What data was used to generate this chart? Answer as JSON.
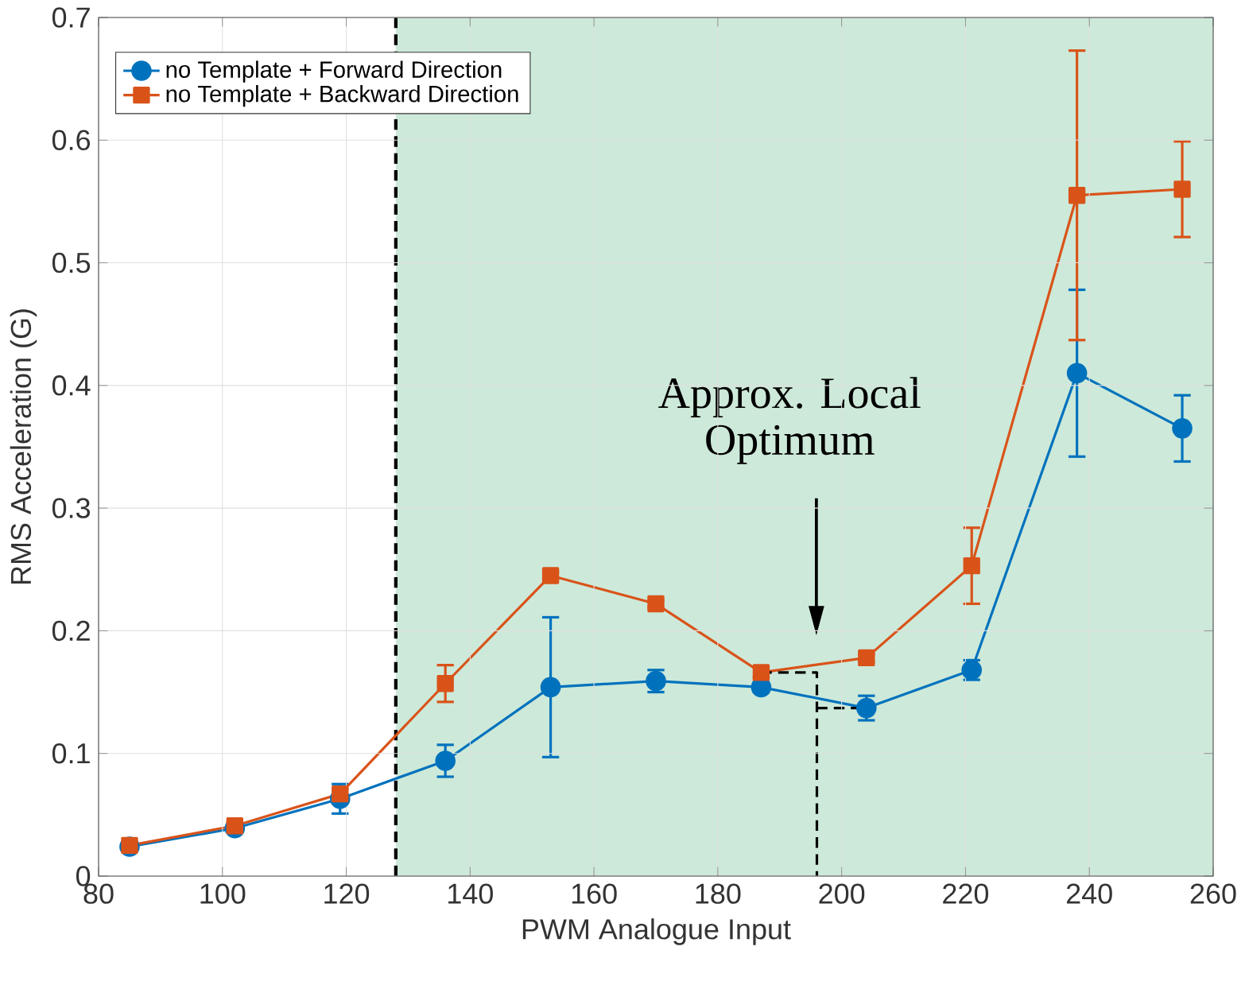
{
  "chart_data": {
    "type": "line",
    "xlabel": "PWM Analogue Input",
    "ylabel": "RMS Acceleration (G)",
    "x": [
      85,
      102,
      119,
      136,
      153,
      170,
      187,
      204,
      221,
      238,
      255
    ],
    "series": [
      {
        "name": "no Template + Forward Direction",
        "color": "#0072bd",
        "marker": "circle",
        "values": [
          0.024,
          0.039,
          0.063,
          0.094,
          0.154,
          0.159,
          0.154,
          0.137,
          0.168,
          0.41,
          0.365
        ],
        "errors": [
          0.003,
          0.003,
          0.012,
          0.013,
          0.057,
          0.009,
          0.004,
          0.01,
          0.008,
          0.068,
          0.027
        ]
      },
      {
        "name": "no Template + Backward Direction",
        "color": "#d95319",
        "marker": "square",
        "values": [
          0.025,
          0.041,
          0.067,
          0.157,
          0.245,
          0.222,
          0.166,
          0.178,
          0.253,
          0.555,
          0.56
        ],
        "errors": [
          0.003,
          0.003,
          0.004,
          0.015,
          0.003,
          0.003,
          0.004,
          0.003,
          0.031,
          0.118,
          0.039
        ]
      },
      {
        "color": "#000000",
        "line_style": "dashed",
        "marker": "none",
        "x": [
          187,
          196,
          196
        ],
        "values": [
          0.166,
          0.166,
          0
        ]
      },
      {
        "color": "#000000",
        "line_style": "dashed",
        "marker": "none",
        "x": [
          196,
          203
        ],
        "values": [
          0.137,
          0.137
        ]
      }
    ],
    "bands": [
      {
        "axis": "x",
        "from": 128,
        "to": 260,
        "color": "#cde9d9"
      }
    ],
    "ref_lines": [
      {
        "axis": "x",
        "value": 128,
        "color": "#000000",
        "line_style": "dashed"
      }
    ],
    "annotations": [
      "Approx. Local Optimum"
    ],
    "xlim": [
      80,
      260
    ],
    "ylim": [
      0,
      0.7
    ],
    "xticks": [
      80,
      100,
      120,
      140,
      160,
      180,
      200,
      220,
      240,
      260
    ],
    "yticks": [
      0,
      0.1,
      0.2,
      0.3,
      0.4,
      0.5,
      0.6,
      0.7
    ],
    "grid": true,
    "legend": "top left"
  }
}
